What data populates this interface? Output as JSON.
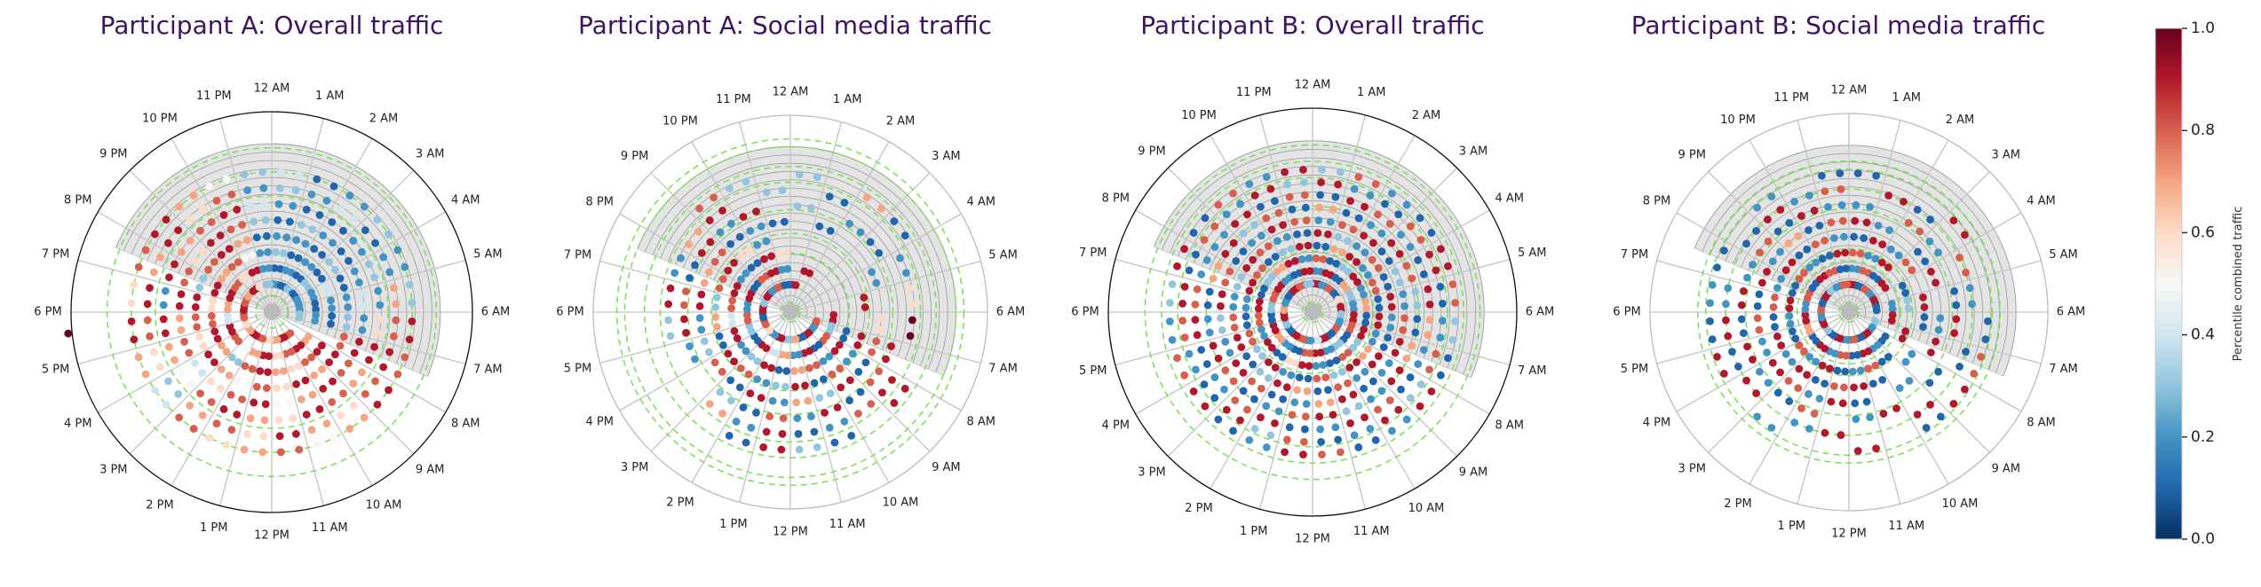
{
  "chart_data": [
    {
      "type": "scatter",
      "projection": "polar",
      "title": "Participant A: Overall traffic",
      "theta_tick_labels": [
        "12 AM",
        "1 AM",
        "2 AM",
        "3 AM",
        "4 AM",
        "5 AM",
        "6 AM",
        "7 AM",
        "8 AM",
        "9 AM",
        "10 AM",
        "11 AM",
        "12 PM",
        "1 PM",
        "2 PM",
        "3 PM",
        "4 PM",
        "5 PM",
        "6 PM",
        "7 PM",
        "8 PM",
        "9 PM",
        "10 PM",
        "11 PM"
      ],
      "theta_unit": "hour of day",
      "value_label": "Percentile combined traffic",
      "rings_by_hour": [
        [
          0.2,
          0.1,
          0.3,
          0.1,
          0.2,
          0.2,
          0.3,
          null,
          null,
          0.8,
          0.9,
          0.7,
          0.6,
          0.8,
          0.9,
          0.7,
          0.6,
          0.8,
          0.9,
          0.8,
          0.7,
          0.9,
          0.6,
          0.3
        ],
        [
          0.1,
          0.2,
          0.1,
          0.3,
          0.2,
          0.1,
          0.2,
          null,
          0.7,
          0.9,
          0.8,
          0.6,
          0.9,
          0.7,
          0.5,
          0.8,
          0.9,
          0.4,
          0.7,
          0.9,
          0.8,
          0.6,
          0.9,
          0.2
        ],
        [
          0.3,
          0.1,
          0.2,
          0.1,
          0.4,
          0.2,
          0.1,
          null,
          0.9,
          0.8,
          0.6,
          0.7,
          0.9,
          0.8,
          0.3,
          0.7,
          0.9,
          0.8,
          0.6,
          0.9,
          0.7,
          0.8,
          0.5,
          0.2
        ],
        [
          0.2,
          0.2,
          0.1,
          0.3,
          0.1,
          0.2,
          0.3,
          0.8,
          0.9,
          0.7,
          0.9,
          0.6,
          0.8,
          0.5,
          0.7,
          0.9,
          0.6,
          0.8,
          0.9,
          0.3,
          0.8,
          0.9,
          0.7,
          0.1
        ],
        [
          0.1,
          0.3,
          0.2,
          0.1,
          0.2,
          0.4,
          0.2,
          0.9,
          0.8,
          0.9,
          0.7,
          0.5,
          0.9,
          0.8,
          0.6,
          0.4,
          0.8,
          0.7,
          0.9,
          0.8,
          0.6,
          0.9,
          0.8,
          0.3
        ],
        [
          0.2,
          0.1,
          0.1,
          0.2,
          0.3,
          0.2,
          0.6,
          0.9,
          0.7,
          0.8,
          0.9,
          0.6,
          0.7,
          0.9,
          0.8,
          0.5,
          0.7,
          0.9,
          0.2,
          0.9,
          0.7,
          0.8,
          0.9,
          0.4
        ],
        [
          0.3,
          0.2,
          0.4,
          0.1,
          0.2,
          0.7,
          0.8,
          0.9,
          0.8,
          0.6,
          0.7,
          0.9,
          0.6,
          0.8,
          0.7,
          0.3,
          0.6,
          0.8,
          0.9,
          0.7,
          0.9,
          0.6,
          0.8,
          0.2
        ],
        [
          0.4,
          0.1,
          0.2,
          0.3,
          0.2,
          0.3,
          0.9,
          0.8,
          0.9,
          0.7,
          0.5,
          0.8,
          0.7,
          0.6,
          0.8,
          0.4,
          0.7,
          0.9,
          0.6,
          0.8,
          0.9,
          0.7,
          0.5,
          0.3
        ]
      ],
      "extra_points": [
        {
          "hour": 17.6,
          "ring": 11,
          "value": 1.0
        }
      ]
    },
    {
      "type": "scatter",
      "projection": "polar",
      "title": "Participant A: Social media traffic",
      "theta_tick_labels": [
        "12 AM",
        "1 AM",
        "2 AM",
        "3 AM",
        "4 AM",
        "5 AM",
        "6 AM",
        "7 AM",
        "8 AM",
        "9 AM",
        "10 AM",
        "11 AM",
        "12 PM",
        "1 PM",
        "2 PM",
        "3 PM",
        "4 PM",
        "5 PM",
        "6 PM",
        "7 PM",
        "8 PM",
        "9 PM",
        "10 PM",
        "11 PM"
      ],
      "theta_unit": "hour of day",
      "value_label": "Percentile combined traffic",
      "rings_by_hour": [
        [
          0.9,
          null,
          null,
          null,
          null,
          null,
          null,
          0.8,
          0.2,
          0.9,
          0.1,
          0.7,
          0.3,
          0.9,
          0.2,
          0.6,
          0.8,
          0.1,
          0.9,
          0.3,
          0.9,
          0.2,
          0.8,
          0.1
        ],
        [
          null,
          0.9,
          null,
          null,
          null,
          null,
          0.9,
          0.3,
          0.8,
          0.1,
          0.9,
          0.2,
          0.7,
          0.4,
          0.9,
          0.1,
          0.3,
          0.8,
          0.2,
          0.9,
          0.1,
          0.8,
          0.9,
          0.2
        ],
        [
          null,
          null,
          null,
          null,
          null,
          null,
          null,
          0.1,
          0.9,
          0.2,
          0.8,
          0.7,
          0.1,
          0.9,
          0.3,
          0.2,
          0.9,
          0.4,
          0.8,
          0.9,
          0.2,
          0.1,
          0.9,
          0.6
        ],
        [
          null,
          null,
          null,
          null,
          null,
          0.9,
          null,
          0.9,
          0.2,
          0.8,
          0.1,
          0.9,
          0.3,
          0.2,
          0.8,
          0.9,
          0.1,
          0.7,
          0.3,
          0.8,
          0.9,
          0.6,
          0.2,
          null
        ],
        [
          null,
          0.1,
          null,
          null,
          0.2,
          null,
          0.6,
          0.8,
          0.1,
          0.9,
          0.3,
          0.7,
          0.2,
          0.9,
          0.1,
          0.8,
          0.3,
          0.2,
          0.9,
          0.7,
          0.8,
          0.1,
          0.2,
          0.1
        ],
        [
          0.3,
          null,
          0.2,
          0.1,
          null,
          null,
          null,
          0.9,
          0.8,
          0.1,
          0.9,
          0.2,
          0.8,
          0.1,
          0.3,
          null,
          0.2,
          0.9,
          0.8,
          0.1,
          0.9,
          0.2,
          0.9,
          null
        ],
        [
          null,
          0.1,
          null,
          null,
          0.2,
          0.6,
          1.0,
          null,
          0.9,
          0.8,
          0.2,
          0.1,
          0.9,
          0.2,
          0.7,
          null,
          null,
          0.3,
          0.9,
          0.2,
          0.7,
          0.9,
          null,
          0.3
        ],
        [
          0.3,
          null,
          0.7,
          0.1,
          null,
          null,
          null,
          null,
          0.9,
          null,
          0.1,
          0.3,
          0.9,
          0.1,
          null,
          null,
          null,
          null,
          null,
          null,
          null,
          0.8,
          0.3,
          null
        ]
      ],
      "extra_points": []
    },
    {
      "type": "scatter",
      "projection": "polar",
      "title": "Participant B: Overall traffic",
      "theta_tick_labels": [
        "12 AM",
        "1 AM",
        "2 AM",
        "3 AM",
        "4 AM",
        "5 AM",
        "6 AM",
        "7 AM",
        "8 AM",
        "9 AM",
        "10 AM",
        "11 AM",
        "12 PM",
        "1 PM",
        "2 PM",
        "3 PM",
        "4 PM",
        "5 PM",
        "6 PM",
        "7 PM",
        "8 PM",
        "9 PM",
        "10 PM",
        "11 PM"
      ],
      "theta_unit": "hour of day",
      "value_label": "Percentile combined traffic",
      "rings_by_hour": [
        [
          0.9,
          0.2,
          0.8,
          0.1,
          0.6,
          0.9,
          0.3,
          0.2,
          0.8,
          0.1,
          0.9,
          0.4,
          0.2,
          0.8,
          0.9,
          0.1,
          0.3,
          0.9,
          0.7,
          0.2,
          0.1,
          0.9,
          0.8,
          0.3
        ],
        [
          0.2,
          0.9,
          0.1,
          0.7,
          0.3,
          0.2,
          0.9,
          0.8,
          0.1,
          0.3,
          0.2,
          0.9,
          0.8,
          0.1,
          0.2,
          0.7,
          0.9,
          0.1,
          0.3,
          0.8,
          0.9,
          0.2,
          0.1,
          0.9
        ],
        [
          0.8,
          0.1,
          0.3,
          0.9,
          0.2,
          0.7,
          0.1,
          0.9,
          0.3,
          0.8,
          0.1,
          0.2,
          0.9,
          0.6,
          0.1,
          0.9,
          0.2,
          0.8,
          0.9,
          0.1,
          0.3,
          0.7,
          0.9,
          0.2
        ],
        [
          0.1,
          0.7,
          0.9,
          0.2,
          0.8,
          0.1,
          0.9,
          0.2,
          0.7,
          0.9,
          0.3,
          0.8,
          0.1,
          0.2,
          0.9,
          0.3,
          0.8,
          0.1,
          0.2,
          0.9,
          0.8,
          0.1,
          0.3,
          0.9
        ],
        [
          0.9,
          0.3,
          0.2,
          0.8,
          0.1,
          0.9,
          0.2,
          0.1,
          0.9,
          0.2,
          0.8,
          0.1,
          0.7,
          0.9,
          0.3,
          0.1,
          0.9,
          0.8,
          0.2,
          0.3,
          0.9,
          0.8,
          0.2,
          0.1
        ],
        [
          0.2,
          0.8,
          0.9,
          0.1,
          0.3,
          0.2,
          0.8,
          0.9,
          0.2,
          0.1,
          0.9,
          0.7,
          0.2,
          0.1,
          0.8,
          0.9,
          0.2,
          0.3,
          0.9,
          0.8,
          0.1,
          0.2,
          0.9,
          0.8
        ],
        [
          0.7,
          0.1,
          0.2,
          0.9,
          0.8,
          0.3,
          0.1,
          0.7,
          0.9,
          0.2,
          0.3,
          0.9,
          0.8,
          0.2,
          0.1,
          0.8,
          0.9,
          0.2,
          0.1,
          0.7,
          0.9,
          0.3,
          0.8,
          0.1
        ],
        [
          0.1,
          0.9,
          0.8,
          0.2,
          0.1,
          0.9,
          0.7,
          0.2,
          0.1,
          0.8,
          0.9,
          0.2,
          0.1,
          0.9,
          0.8,
          0.2,
          0.1,
          0.9,
          0.8,
          0.2,
          0.2,
          0.9,
          0.1,
          0.8
        ],
        [
          0.9,
          0.2,
          0.1,
          0.8,
          0.9,
          0.1,
          0.2,
          0.8,
          0.3,
          0.9,
          0.2,
          0.1,
          0.8,
          0.3,
          0.9,
          0.1,
          0.2,
          0.8,
          0.9,
          0.1,
          0.8,
          0.2,
          0.9,
          0.3
        ],
        [
          0.3,
          0.8,
          0.2,
          0.1,
          0.9,
          0.8,
          0.3,
          0.1,
          0.9,
          0.2,
          0.1,
          0.8,
          0.9,
          0.2,
          0.1,
          0.9,
          0.8,
          0.2,
          0.3,
          0.9,
          0.1,
          0.8,
          0.2,
          0.9
        ]
      ],
      "extra_points": []
    },
    {
      "type": "scatter",
      "projection": "polar",
      "title": "Participant B: Social media traffic",
      "theta_tick_labels": [
        "12 AM",
        "1 AM",
        "2 AM",
        "3 AM",
        "4 AM",
        "5 AM",
        "6 AM",
        "7 AM",
        "8 AM",
        "9 AM",
        "10 AM",
        "11 AM",
        "12 PM",
        "1 PM",
        "2 PM",
        "3 PM",
        "4 PM",
        "5 PM",
        "6 PM",
        "7 PM",
        "8 PM",
        "9 PM",
        "10 PM",
        "11 PM"
      ],
      "theta_unit": "hour of day",
      "value_label": "Percentile combined traffic",
      "rings_by_hour": [
        [
          0.9,
          0.1,
          0.8,
          0.2,
          0.9,
          0.1,
          null,
          0.3,
          0.2,
          0.9,
          0.1,
          0.8,
          0.2,
          0.9,
          0.1,
          0.3,
          0.9,
          0.2,
          0.8,
          0.1,
          0.9,
          0.3,
          0.2,
          0.8
        ],
        [
          0.2,
          0.8,
          0.1,
          0.9,
          null,
          0.2,
          0.9,
          null,
          0.1,
          0.2,
          0.9,
          0.1,
          0.8,
          0.2,
          0.9,
          0.1,
          0.7,
          0.9,
          0.2,
          0.8,
          0.1,
          0.9,
          0.8,
          0.1
        ],
        [
          0.8,
          0.2,
          0.9,
          null,
          0.1,
          0.3,
          null,
          0.9,
          null,
          0.1,
          0.8,
          0.2,
          0.1,
          0.9,
          0.2,
          0.8,
          0.1,
          0.2,
          0.9,
          0.1,
          0.8,
          0.2,
          0.1,
          0.9
        ],
        [
          0.1,
          0.9,
          0.2,
          0.8,
          null,
          0.9,
          0.1,
          null,
          0.2,
          null,
          0.1,
          0.9,
          0.8,
          0.1,
          0.9,
          0.2,
          0.9,
          0.1,
          0.8,
          0.2,
          0.9,
          0.1,
          0.8,
          0.2
        ],
        [
          0.9,
          0.2,
          null,
          0.1,
          0.9,
          null,
          0.2,
          0.9,
          null,
          0.2,
          null,
          0.1,
          0.9,
          0.2,
          0.8,
          0.9,
          0.2,
          0.8,
          0.1,
          0.9,
          0.2,
          0.7,
          0.1,
          0.8
        ],
        [
          0.2,
          null,
          0.8,
          0.2,
          null,
          0.1,
          0.9,
          null,
          0.1,
          null,
          0.9,
          0.2,
          null,
          0.8,
          0.1,
          0.2,
          0.9,
          0.1,
          0.9,
          0.2,
          0.8,
          0.1,
          0.9,
          0.2
        ],
        [
          null,
          0.9,
          0.1,
          null,
          0.8,
          0.2,
          null,
          0.1,
          null,
          0.9,
          null,
          null,
          0.9,
          0.2,
          null,
          0.9,
          0.1,
          0.9,
          0.2,
          null,
          0.1,
          0.9,
          0.2,
          0.8
        ],
        [
          0.1,
          null,
          null,
          0.9,
          null,
          null,
          0.1,
          0.8,
          0.9,
          0.1,
          null,
          0.9,
          null,
          null,
          0.2,
          null,
          0.9,
          0.1,
          0.2,
          0.1,
          null,
          0.2,
          null,
          0.1
        ]
      ],
      "extra_points": []
    }
  ],
  "colorbar": {
    "label": "Percentile combined traffic",
    "range": [
      0.0,
      1.0
    ],
    "ticks": [
      "0.0",
      "0.2",
      "0.4",
      "0.6",
      "0.8",
      "1.0"
    ],
    "colormap": "RdBu_r",
    "stops": [
      "#053061",
      "#2166ac",
      "#4393c3",
      "#92c5de",
      "#d1e5f0",
      "#f7f7f7",
      "#fddbc7",
      "#f4a582",
      "#d6604d",
      "#b2182b",
      "#67001f"
    ]
  },
  "colors": {
    "title": "#3f1262",
    "night_shading": "#e4e4e4",
    "dashed_circles": "#7ee05a"
  }
}
